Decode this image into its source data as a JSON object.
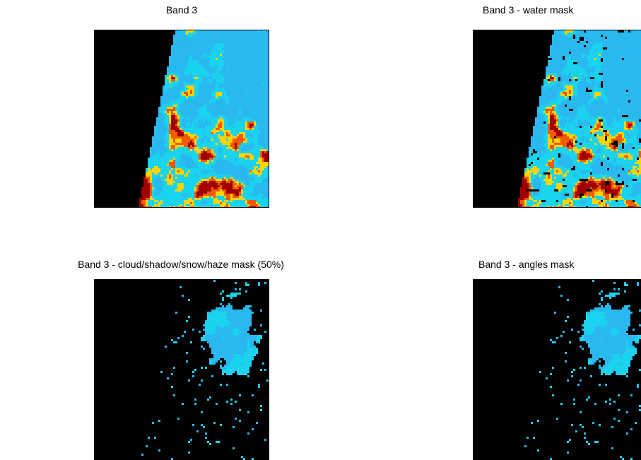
{
  "figure": {
    "panels": [
      {
        "title": "Band 3",
        "mask": "none"
      },
      {
        "title": "Band 3 - water mask",
        "mask": "water"
      },
      {
        "title": "Band 3 - cloud/shadow/snow/haze mask (50%)",
        "mask": "cloud"
      },
      {
        "title": "Band 3 - angles mask",
        "mask": "angles"
      }
    ]
  },
  "colors": {
    "background": "#000000",
    "low": "#1ad3ef",
    "mid": "#2ab8f0",
    "high": "#ffd400",
    "higher": "#f05a00",
    "highest": "#a00000"
  }
}
